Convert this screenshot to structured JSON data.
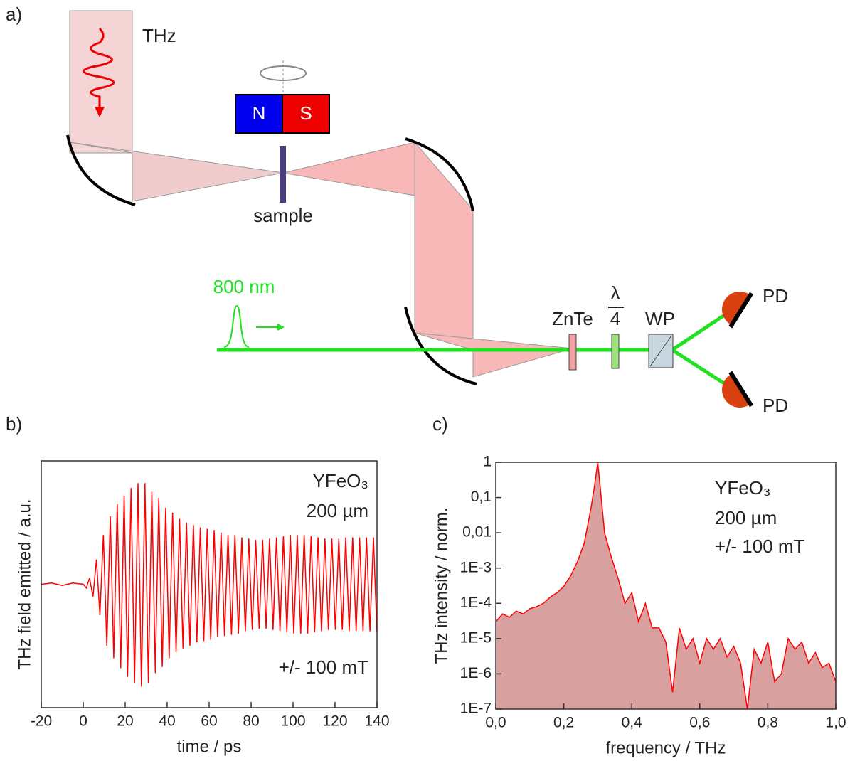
{
  "diagram": {
    "panel_label": "a)",
    "thz": "THz",
    "north": "N",
    "south": "S",
    "sample": "sample",
    "laser": "800 nm",
    "znte": "ZnTe",
    "lambda": "λ",
    "lambda_den": "4",
    "wp": "WP",
    "pd_top": "PD",
    "pd_bottom": "PD"
  },
  "chart_data": [
    {
      "type": "line",
      "panel_label": "b)",
      "x_label": "time / ps",
      "y_label": "THz field emitted / a.u.",
      "annotations": [
        "YFeO₃",
        "200 µm",
        "+/- 100 mT"
      ],
      "color": "#ff0000",
      "xlim": [
        -20,
        140
      ],
      "xticks": [
        -20,
        0,
        20,
        40,
        60,
        80,
        100,
        120,
        140
      ],
      "ylim": [
        -1,
        1
      ],
      "x": [
        -20,
        -15,
        -10,
        -5,
        0,
        1.5,
        3,
        4.65,
        6.3,
        7.95,
        9.6,
        11.25,
        12.9,
        14.55,
        16.2,
        17.85,
        19.5,
        21.15,
        22.8,
        24.45,
        26.1,
        27.75,
        29.4,
        31.05,
        32.7,
        34.35,
        36,
        37.65,
        39.3,
        40.95,
        42.6,
        44.25,
        45.9,
        47.55,
        49.2,
        50.85,
        52.5,
        54.15,
        55.8,
        57.45,
        59.1,
        60.75,
        62.4,
        64.05,
        65.7,
        67.35,
        69,
        70.65,
        72.3,
        73.95,
        75.6,
        77.25,
        78.9,
        80.55,
        82.2,
        83.85,
        85.5,
        87.15,
        88.8,
        90.45,
        92.1,
        93.75,
        95.4,
        97.05,
        98.7,
        100.35,
        102,
        103.65,
        105.3,
        106.95,
        108.6,
        110.25,
        111.9,
        113.55,
        115.2,
        116.85,
        118.5,
        120.15,
        121.8,
        123.45,
        125.1,
        126.75,
        128.4,
        130.05,
        131.7,
        133.35,
        135,
        136.65,
        138.3,
        139.95
      ],
      "values": [
        0,
        0.01,
        -0.01,
        0.01,
        0,
        -0.03,
        0.05,
        -0.1,
        0.2,
        -0.25,
        0.4,
        -0.5,
        0.55,
        -0.6,
        0.65,
        -0.68,
        0.72,
        -0.75,
        0.78,
        -0.8,
        0.82,
        -0.83,
        0.82,
        -0.8,
        0.75,
        -0.72,
        0.7,
        -0.67,
        0.62,
        -0.6,
        0.58,
        -0.55,
        0.53,
        -0.52,
        0.5,
        -0.5,
        0.48,
        -0.47,
        0.46,
        -0.46,
        0.45,
        -0.45,
        0.44,
        -0.43,
        0.42,
        -0.42,
        0.4,
        -0.41,
        0.4,
        -0.4,
        0.38,
        -0.38,
        0.37,
        -0.37,
        0.36,
        -0.36,
        0.36,
        -0.36,
        0.37,
        -0.37,
        0.38,
        -0.38,
        0.39,
        -0.39,
        0.4,
        -0.4,
        0.4,
        -0.4,
        0.4,
        -0.4,
        0.39,
        -0.39,
        0.38,
        -0.38,
        0.37,
        -0.37,
        0.37,
        -0.37,
        0.37,
        -0.37,
        0.38,
        -0.38,
        0.38,
        -0.38,
        0.38,
        -0.38,
        0.38,
        -0.38,
        0.38,
        -0.38
      ]
    },
    {
      "type": "area",
      "panel_label": "c)",
      "x_label": "frequency / THz",
      "y_label": "THz intensity / norm.",
      "annotations": [
        "YFeO₃",
        "200 µm",
        "+/- 100 mT"
      ],
      "color": "#ff0000",
      "fill": "#d9a0a0",
      "log_y": true,
      "xlim": [
        0,
        1
      ],
      "xticks": [
        {
          "value": 0,
          "label": "0,0"
        },
        {
          "value": 0.2,
          "label": "0,2"
        },
        {
          "value": 0.4,
          "label": "0,4"
        },
        {
          "value": 0.6,
          "label": "0,6"
        },
        {
          "value": 0.8,
          "label": "0,8"
        },
        {
          "value": 1,
          "label": "1,0"
        }
      ],
      "ylim": [
        1e-07,
        1
      ],
      "yticks": [
        {
          "value": 1e-07,
          "label": "1E-7"
        },
        {
          "value": 1e-06,
          "label": "1E-6"
        },
        {
          "value": 1e-05,
          "label": "1E-5"
        },
        {
          "value": 0.0001,
          "label": "1E-4"
        },
        {
          "value": 0.001,
          "label": "1E-3"
        },
        {
          "value": 0.01,
          "label": "0,01"
        },
        {
          "value": 0.1,
          "label": "0,1"
        },
        1
      ],
      "x": [
        0,
        0.02,
        0.04,
        0.06,
        0.08,
        0.1,
        0.12,
        0.14,
        0.16,
        0.18,
        0.2,
        0.22,
        0.24,
        0.26,
        0.28,
        0.29,
        0.3,
        0.31,
        0.32,
        0.34,
        0.36,
        0.38,
        0.4,
        0.42,
        0.44,
        0.46,
        0.48,
        0.5,
        0.52,
        0.54,
        0.56,
        0.58,
        0.6,
        0.62,
        0.64,
        0.66,
        0.68,
        0.7,
        0.72,
        0.74,
        0.76,
        0.78,
        0.8,
        0.82,
        0.84,
        0.86,
        0.88,
        0.9,
        0.92,
        0.94,
        0.96,
        0.98,
        1
      ],
      "values": [
        3e-05,
        5e-05,
        4e-05,
        6e-05,
        5e-05,
        7e-05,
        8e-05,
        0.0001,
        0.00015,
        0.0002,
        0.0003,
        0.0006,
        0.0015,
        0.005,
        0.05,
        0.2,
        1,
        0.1,
        0.01,
        0.002,
        0.0005,
        0.0001,
        0.0002,
        3e-05,
        0.0001,
        2e-05,
        2e-05,
        8e-06,
        3e-07,
        2e-05,
        5e-06,
        1e-05,
        2e-06,
        1e-05,
        5e-06,
        1e-05,
        3e-06,
        6e-06,
        2e-06,
        1e-07,
        5e-06,
        2e-06,
        8e-06,
        6e-07,
        1e-06,
        1e-05,
        5e-06,
        8e-06,
        2e-06,
        4e-06,
        1.5e-06,
        2e-06,
        6e-07
      ]
    }
  ]
}
